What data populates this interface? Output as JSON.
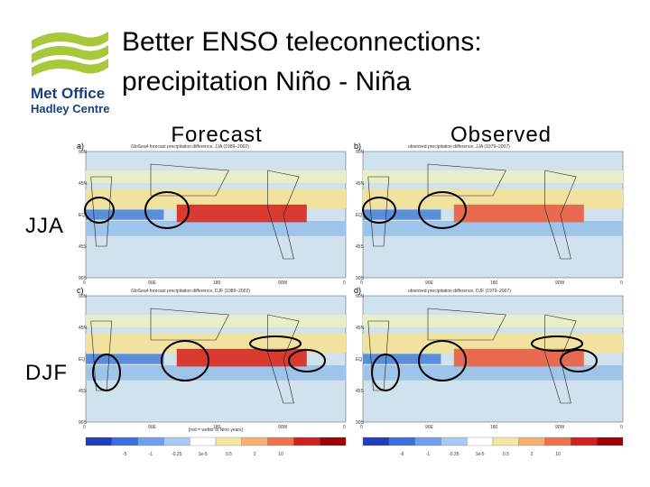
{
  "header": {
    "title_lines": [
      "Better ENSO teleconnections:",
      "precipitation Niño - Niña"
    ]
  },
  "logo": {
    "name": "Met Office",
    "subname": "Hadley Centre"
  },
  "columns": [
    "Forecast",
    "Observed"
  ],
  "rows": [
    "JJA",
    "DJF"
  ],
  "panels": [
    {
      "label": "a)",
      "title": "GloSea4 forecast precipitation difference, JJA (1989–2002)"
    },
    {
      "label": "b)",
      "title": "observed precipitation difference, JJA (1979–2007)"
    },
    {
      "label": "c)",
      "title": "GloSea4 forecast precipitation difference, DJF (1989–2002)"
    },
    {
      "label": "d)",
      "title": "observed precipitation difference, DJF (1979–2007)"
    }
  ],
  "map_axes": {
    "x": [
      "0",
      "90E",
      "180",
      "90W",
      "0"
    ],
    "y": [
      "90N",
      "45N",
      "EQ",
      "45S",
      "90S"
    ]
  },
  "colorbars": [
    {
      "ticks": [
        "-5",
        "-1",
        "-0.25",
        "1e-5",
        "0.5",
        "2",
        "10"
      ],
      "note": "[red = wetter in Nino years]"
    },
    {
      "ticks": [
        "-6",
        "-1",
        "-0.25",
        "1e-5",
        "0.5",
        "2",
        "10"
      ]
    }
  ]
}
